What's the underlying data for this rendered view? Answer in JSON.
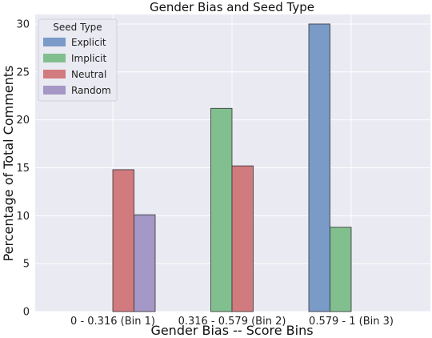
{
  "chart_data": {
    "type": "bar",
    "title": "Gender Bias and Seed Type",
    "xlabel": "Gender Bias -- Score Bins",
    "ylabel": "Percentage of Total Comments",
    "categories": [
      "0 - 0.316 (Bin 1)",
      "0.316 - 0.579 (Bin 2)",
      "0.579 - 1 (Bin 3)"
    ],
    "ylim": [
      0,
      31
    ],
    "yticks": [
      0,
      5,
      10,
      15,
      20,
      25,
      30
    ],
    "legend": {
      "title": "Seed Type",
      "placement": "top-left"
    },
    "grid": true,
    "series": [
      {
        "name": "Explicit",
        "color": "#7a9ac8",
        "values": [
          0,
          0,
          30.0
        ]
      },
      {
        "name": "Implicit",
        "color": "#81bf8f",
        "values": [
          0,
          21.2,
          8.8
        ]
      },
      {
        "name": "Neutral",
        "color": "#d17b7e",
        "values": [
          14.8,
          15.2,
          0
        ]
      },
      {
        "name": "Random",
        "color": "#a597c6",
        "values": [
          10.1,
          0,
          0
        ]
      }
    ]
  }
}
